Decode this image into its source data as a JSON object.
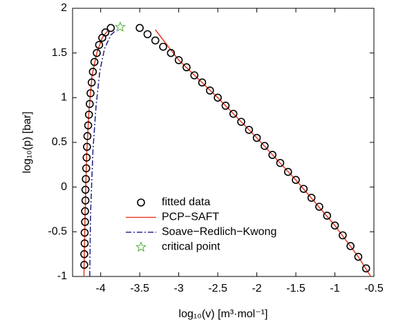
{
  "chart_data": {
    "type": "line",
    "xlabel": "log₁₀(v) [m³·mol⁻¹]",
    "ylabel": "log₁₀(p) [bar]",
    "xlim": [
      -4.36,
      -0.5
    ],
    "xticks": [
      -4,
      -3.5,
      -3,
      -2.5,
      -2,
      -1.5,
      -1,
      -0.5
    ],
    "ylim": [
      -1,
      2
    ],
    "yticks": [
      -1,
      -0.5,
      0,
      0.5,
      1,
      1.5,
      2
    ],
    "grid": false,
    "legend": "bottom",
    "series": [
      {
        "name": "fitted data",
        "color": "#000000",
        "style": "circle",
        "x": [
          -4.21,
          -4.21,
          -4.205,
          -4.205,
          -4.2,
          -4.2,
          -4.195,
          -4.195,
          -4.19,
          -4.185,
          -4.18,
          -4.175,
          -4.17,
          -4.16,
          -4.15,
          -4.14,
          -4.13,
          -4.115,
          -4.1,
          -4.08,
          -4.05,
          -4.02,
          -3.98,
          -3.94,
          -3.87,
          -3.5,
          -3.4,
          -3.3,
          -3.2,
          -3.1,
          -3.0,
          -2.9,
          -2.8,
          -2.7,
          -2.6,
          -2.5,
          -2.4,
          -2.3,
          -2.2,
          -2.1,
          -2.0,
          -1.9,
          -1.8,
          -1.7,
          -1.6,
          -1.5,
          -1.4,
          -1.3,
          -1.2,
          -1.1,
          -1.0,
          -0.9,
          -0.8,
          -0.7,
          -0.6
        ],
        "values": [
          -0.87,
          -0.75,
          -0.63,
          -0.51,
          -0.39,
          -0.27,
          -0.15,
          -0.03,
          0.09,
          0.21,
          0.33,
          0.45,
          0.57,
          0.69,
          0.81,
          0.93,
          1.05,
          1.17,
          1.29,
          1.4,
          1.5,
          1.59,
          1.67,
          1.73,
          1.78,
          1.78,
          1.71,
          1.64,
          1.57,
          1.5,
          1.42,
          1.34,
          1.25,
          1.17,
          1.08,
          1.0,
          0.91,
          0.82,
          0.73,
          0.64,
          0.55,
          0.46,
          0.36,
          0.27,
          0.17,
          0.08,
          -0.02,
          -0.12,
          -0.22,
          -0.32,
          -0.43,
          -0.54,
          -0.66,
          -0.78,
          -0.91
        ]
      },
      {
        "name": "PCP−SAFT",
        "color": "#e8402a",
        "style": "solid",
        "x": [
          -4.215,
          -4.2,
          -4.18,
          -4.15,
          -4.11,
          -4.05,
          -3.98,
          -3.9,
          null,
          -3.3,
          -3.0,
          -2.5,
          -2.0,
          -1.5,
          -1.0,
          -0.7,
          -0.54
        ],
        "values": [
          -1,
          -0.3,
          0.35,
          0.85,
          1.25,
          1.5,
          1.67,
          1.76,
          null,
          1.76,
          1.42,
          1.0,
          0.55,
          0.08,
          -0.43,
          -0.78,
          -1
        ]
      },
      {
        "name": "Soave−Redlich−Kwong",
        "color": "#2a2a8c",
        "style": "dashdot",
        "x": [
          -4.14,
          -4.13,
          -4.1,
          -4.06,
          -4.01,
          -3.95,
          -3.87,
          -3.8
        ],
        "values": [
          -1,
          -0.3,
          0.4,
          0.9,
          1.3,
          1.55,
          1.7,
          1.76
        ]
      },
      {
        "name": "critical point",
        "color": "#4caf3a",
        "style": "star",
        "x": [
          -3.75
        ],
        "values": [
          1.79
        ]
      }
    ]
  }
}
